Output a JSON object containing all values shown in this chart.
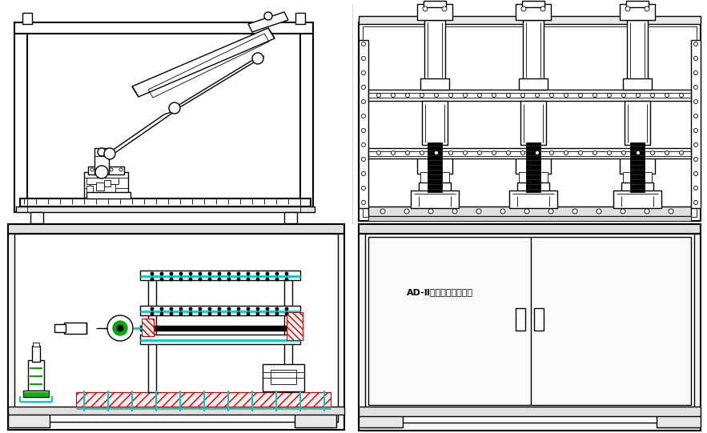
{
  "bg_color": "#ffffff",
  "lc": "#000000",
  "cc": "#00cccc",
  "gc": "#00aa00",
  "rc": "#cc0000",
  "figsize": [
    8.83,
    5.41
  ],
  "dpi": 100,
  "cabinet_label": "AD-Ⅱ手动可靠性试验台",
  "lw_thick": 1.5,
  "lw_med": 1.0,
  "lw_thin": 0.6
}
